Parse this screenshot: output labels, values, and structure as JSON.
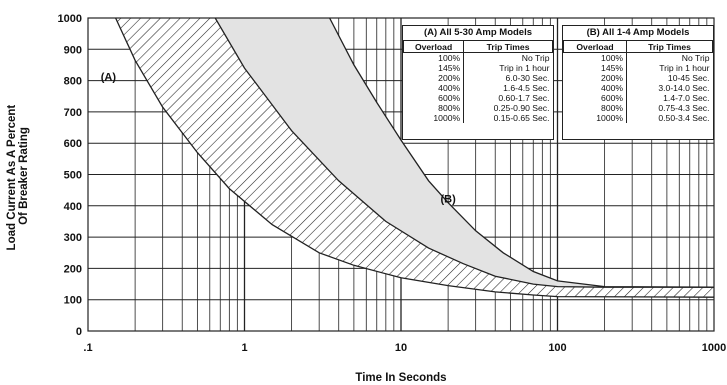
{
  "chart_data": {
    "type": "area",
    "title": "",
    "xlabel": "Time In Seconds",
    "ylabel_lines": [
      "Load Current As A Percent",
      "Of Breaker Rating"
    ],
    "x_scale": "log",
    "xlim": [
      0.1,
      1000
    ],
    "ylim": [
      0,
      1000
    ],
    "x_tick_labels": [
      {
        "value": 0.1,
        "label": ".1"
      },
      {
        "value": 1,
        "label": "1"
      },
      {
        "value": 10,
        "label": "10"
      },
      {
        "value": 100,
        "label": "100"
      },
      {
        "value": 1000,
        "label": "1000"
      }
    ],
    "y_ticks": [
      0,
      100,
      200,
      300,
      400,
      500,
      600,
      700,
      800,
      900,
      1000
    ],
    "grid": true,
    "bands": [
      {
        "label": "(A)",
        "fill": "hatched",
        "label_at": {
          "x": 0.135,
          "y": 810
        },
        "fast_curve": [
          [
            0.15,
            1000
          ],
          [
            0.2,
            865
          ],
          [
            0.3,
            715
          ],
          [
            0.5,
            570
          ],
          [
            0.8,
            455
          ],
          [
            1.5,
            340
          ],
          [
            3,
            250
          ],
          [
            5,
            210
          ],
          [
            10,
            170
          ],
          [
            20,
            145
          ],
          [
            40,
            125
          ],
          [
            70,
            115
          ],
          [
            100,
            110
          ],
          [
            1000,
            108
          ]
        ],
        "slow_curve": [
          [
            0.65,
            1000
          ],
          [
            1,
            840
          ],
          [
            2,
            640
          ],
          [
            4,
            480
          ],
          [
            8,
            350
          ],
          [
            15,
            265
          ],
          [
            25,
            215
          ],
          [
            40,
            175
          ],
          [
            70,
            150
          ],
          [
            100,
            142
          ],
          [
            200,
            140
          ],
          [
            1000,
            140
          ]
        ]
      },
      {
        "label": "(B)",
        "fill": "shaded",
        "label_at": {
          "x": 20,
          "y": 420
        },
        "fast_curve": [
          [
            0.65,
            1000
          ],
          [
            1,
            840
          ],
          [
            2,
            640
          ],
          [
            4,
            480
          ],
          [
            8,
            350
          ],
          [
            15,
            265
          ],
          [
            25,
            215
          ],
          [
            40,
            175
          ],
          [
            70,
            150
          ],
          [
            100,
            142
          ],
          [
            200,
            140
          ],
          [
            1000,
            140
          ]
        ],
        "slow_curve": [
          [
            3.5,
            1000
          ],
          [
            5,
            850
          ],
          [
            7,
            730
          ],
          [
            10,
            610
          ],
          [
            15,
            480
          ],
          [
            20,
            410
          ],
          [
            30,
            320
          ],
          [
            45,
            250
          ],
          [
            70,
            190
          ],
          [
            100,
            160
          ],
          [
            200,
            142
          ],
          [
            1000,
            140
          ]
        ]
      }
    ],
    "tables": [
      {
        "title": "(A) All 5-30 Amp Models",
        "columns": [
          "Overload",
          "Trip Times"
        ],
        "rows": [
          [
            "100%",
            "No Trip"
          ],
          [
            "145%",
            "Trip in 1 hour"
          ],
          [
            "200%",
            "6.0-30 Sec."
          ],
          [
            "400%",
            "1.6-4.5 Sec."
          ],
          [
            "600%",
            "0.60-1.7 Sec."
          ],
          [
            "800%",
            "0.25-0.90 Sec."
          ],
          [
            "1000%",
            "0.15-0.65 Sec."
          ]
        ]
      },
      {
        "title": "(B) All 1-4 Amp Models",
        "columns": [
          "Overload",
          "Trip Times"
        ],
        "rows": [
          [
            "100%",
            "No Trip"
          ],
          [
            "145%",
            "Trip in 1 hour"
          ],
          [
            "200%",
            "10-45 Sec."
          ],
          [
            "400%",
            "3.0-14.0 Sec."
          ],
          [
            "600%",
            "1.4-7.0 Sec."
          ],
          [
            "800%",
            "0.75-4.3 Sec."
          ],
          [
            "1000%",
            "0.50-3.4 Sec."
          ]
        ]
      }
    ]
  },
  "colors": {
    "grid": "#222222",
    "band_b_fill": "#e3e3e3",
    "hatch": "#222222",
    "text": "#111111"
  }
}
